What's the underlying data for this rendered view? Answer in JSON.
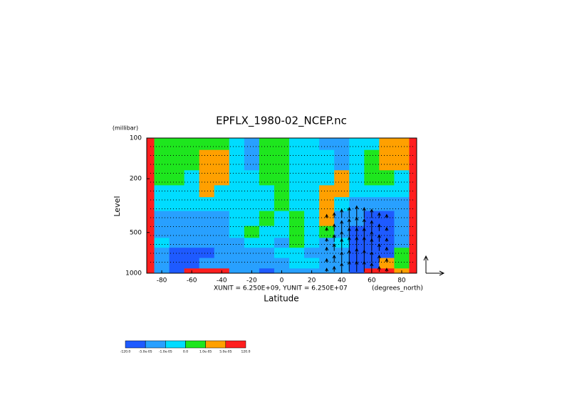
{
  "chart_data": {
    "type": "contour",
    "title": "EPFLX_1980-02_NCEP.nc",
    "y_unit_label": "(millibar)",
    "y_label": "Level",
    "x_label": "Latitude",
    "vector_units": "XUNIT = 6.250E+09, YUNIT = 6.250E+07",
    "x_unit_label": "(degrees_north)",
    "xlim": [
      -90,
      90
    ],
    "xticks": [
      -80,
      -60,
      -40,
      -20,
      0,
      20,
      40,
      60,
      80
    ],
    "ylim": [
      100,
      1000
    ],
    "yticks": [
      100,
      200,
      500,
      1000
    ],
    "ylog": true,
    "lat": [
      -90,
      -80,
      -70,
      -60,
      -50,
      -40,
      -30,
      -20,
      -10,
      0,
      10,
      20,
      30,
      40,
      50,
      60,
      70,
      80,
      90
    ],
    "levels": [
      100,
      150,
      200,
      250,
      300,
      400,
      500,
      600,
      700,
      850,
      1000
    ],
    "field": [
      [
        0.0001,
        5e-06,
        5e-06,
        5e-06,
        5e-06,
        5e-06,
        -5e-06,
        -3e-05,
        5e-06,
        5e-06,
        -5e-06,
        -5e-06,
        -3e-05,
        -3e-05,
        -5e-06,
        -5e-06,
        3e-05,
        3e-05,
        0.0001
      ],
      [
        0.0001,
        5e-06,
        5e-06,
        5e-06,
        3e-05,
        3e-05,
        -5e-06,
        -3e-05,
        5e-06,
        5e-06,
        -5e-06,
        -5e-06,
        -5e-06,
        -3e-05,
        -5e-06,
        5e-06,
        3e-05,
        3e-05,
        0.0001
      ],
      [
        0.0001,
        5e-06,
        5e-06,
        -5e-06,
        3e-05,
        3e-05,
        -5e-06,
        -5e-06,
        5e-06,
        5e-06,
        -5e-06,
        -5e-06,
        -5e-06,
        3e-05,
        -5e-06,
        5e-06,
        5e-06,
        -5e-06,
        0.0001
      ],
      [
        0.0001,
        -5e-06,
        -5e-06,
        -5e-06,
        3e-05,
        -5e-06,
        -5e-06,
        -5e-06,
        -5e-06,
        5e-06,
        -5e-06,
        -5e-06,
        3e-05,
        3e-05,
        -5e-06,
        -5e-06,
        -5e-06,
        -5e-06,
        0.0001
      ],
      [
        0.0001,
        -5e-06,
        -5e-06,
        -5e-06,
        -5e-06,
        -5e-06,
        -5e-06,
        -5e-06,
        -5e-06,
        5e-06,
        -5e-06,
        -5e-06,
        3e-05,
        -5e-06,
        -3e-05,
        -3e-05,
        -3e-05,
        -3e-05,
        0.0001
      ],
      [
        0.0001,
        -3e-05,
        -3e-05,
        -3e-05,
        -3e-05,
        -3e-05,
        -5e-06,
        -5e-06,
        5e-06,
        -5e-06,
        5e-06,
        -5e-06,
        3e-05,
        -3e-05,
        -3e-05,
        -0.0001,
        -0.0001,
        -3e-05,
        0.0001
      ],
      [
        0.0001,
        -3e-05,
        -3e-05,
        -3e-05,
        -3e-05,
        -3e-05,
        -5e-06,
        5e-06,
        -5e-06,
        -5e-06,
        5e-06,
        -5e-06,
        5e-06,
        -3e-05,
        -0.0001,
        -0.0001,
        -0.0001,
        -3e-05,
        0.0001
      ],
      [
        0.0001,
        -5e-06,
        -3e-05,
        -3e-05,
        -3e-05,
        -3e-05,
        -3e-05,
        -5e-06,
        -5e-06,
        -3e-05,
        5e-06,
        -5e-06,
        -3e-05,
        -5e-06,
        -0.0001,
        -0.0001,
        -0.0001,
        -3e-05,
        0.0001
      ],
      [
        0.0001,
        -3e-05,
        -0.0001,
        -0.0001,
        -0.0001,
        -3e-05,
        -3e-05,
        -3e-05,
        -3e-05,
        -5e-06,
        -5e-06,
        -3e-05,
        -3e-05,
        -3e-05,
        -0.0001,
        -0.0001,
        -0.0001,
        5e-06,
        0.0001
      ],
      [
        0.0001,
        -3e-05,
        -0.0001,
        -0.0001,
        -3e-05,
        -3e-05,
        -3e-05,
        -3e-05,
        -3e-05,
        -3e-05,
        -5e-06,
        -5e-06,
        -3e-05,
        -3e-05,
        -0.0001,
        -0.0001,
        3e-05,
        5e-06,
        0.0001
      ],
      [
        0.0001,
        -3e-05,
        -0.0001,
        0.0001,
        0.0001,
        0.0001,
        -3e-05,
        -3e-05,
        -0.0001,
        -3e-05,
        -3e-05,
        -3e-05,
        -3e-05,
        -3e-05,
        -0.0001,
        0.0001,
        0.0001,
        3e-05,
        0.0001
      ]
    ],
    "vector_lat": [
      30,
      35,
      40,
      45,
      50,
      55,
      60,
      65,
      70
    ],
    "vector_levels": [
      400,
      500,
      600,
      700,
      850,
      1000
    ],
    "vector_v": [
      [
        0.2,
        0.3,
        0.5,
        0.6,
        0.7,
        0.6,
        0.5,
        0.3,
        0.2
      ],
      [
        0.2,
        0.4,
        0.6,
        0.7,
        0.8,
        0.7,
        0.6,
        0.4,
        0.2
      ],
      [
        0.2,
        0.4,
        0.6,
        0.8,
        0.8,
        0.8,
        0.6,
        0.4,
        0.2
      ],
      [
        0.2,
        0.4,
        0.7,
        0.8,
        0.8,
        0.8,
        0.7,
        0.4,
        0.2
      ],
      [
        0.2,
        0.4,
        0.6,
        0.7,
        0.8,
        0.7,
        0.6,
        0.4,
        0.2
      ],
      [
        0.2,
        0.3,
        0.5,
        0.6,
        0.6,
        0.6,
        0.5,
        0.3,
        0.2
      ]
    ],
    "colorbar_levels": [
      {
        "value": -120,
        "label": "-120.0"
      },
      {
        "value": -5e-05,
        "label": "-5.0e-05"
      },
      {
        "value": -1e-05,
        "label": "-1.0e-05"
      },
      {
        "value": 0,
        "label": "0.0"
      },
      {
        "value": 1e-05,
        "label": "1.0e-05"
      },
      {
        "value": 5e-05,
        "label": "5.0e-05"
      },
      {
        "value": 120,
        "label": "120.0"
      }
    ],
    "colors": [
      "#1e5aff",
      "#28a0ff",
      "#00dcff",
      "#1ee61e",
      "#ffa000",
      "#ff1e1e"
    ]
  }
}
